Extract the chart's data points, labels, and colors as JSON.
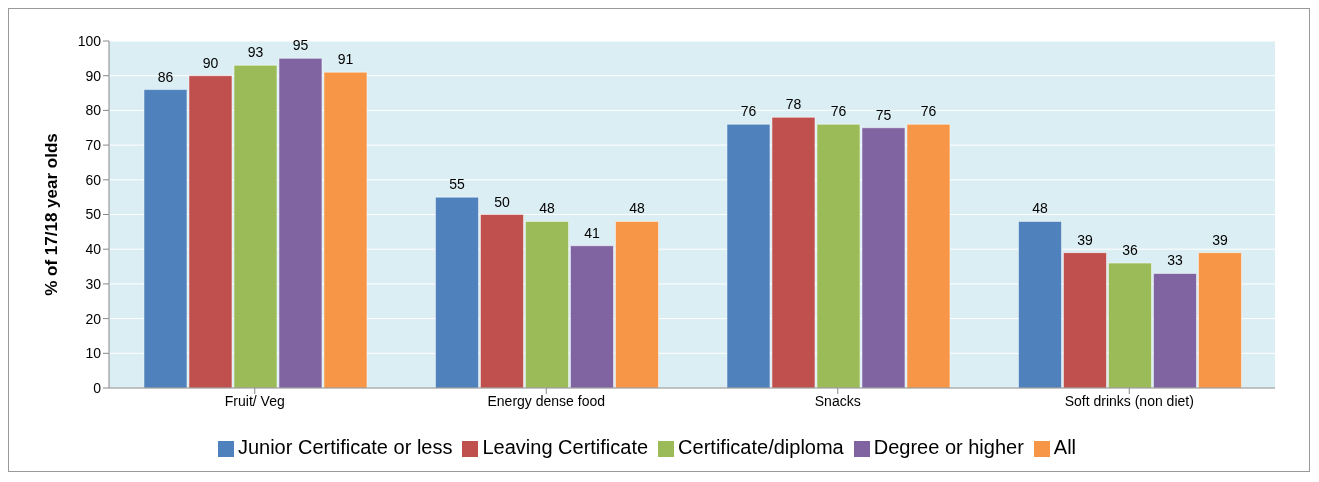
{
  "chart_data": {
    "type": "bar",
    "ylabel": "% of 17/18 year olds",
    "categories": [
      "Fruit/ Veg",
      "Energy dense food",
      "Snacks",
      "Soft drinks (non diet)"
    ],
    "series": [
      {
        "name": "Junior Certificate or less",
        "color": "#4f81bd",
        "values": [
          86,
          55,
          76,
          48
        ]
      },
      {
        "name": "Leaving Certificate",
        "color": "#c0504d",
        "values": [
          90,
          50,
          78,
          39
        ]
      },
      {
        "name": "Certificate/diploma",
        "color": "#9bbb59",
        "values": [
          93,
          48,
          76,
          36
        ]
      },
      {
        "name": "Degree or higher",
        "color": "#8064a2",
        "values": [
          95,
          41,
          75,
          33
        ]
      },
      {
        "name": "All",
        "color": "#f79646",
        "values": [
          91,
          48,
          76,
          39
        ]
      }
    ],
    "ylim": [
      0,
      100
    ],
    "yticks": [
      0,
      10,
      20,
      30,
      40,
      50,
      60,
      70,
      80,
      90,
      100
    ],
    "grid": "y",
    "legend": "bottom",
    "data_labels": true
  }
}
